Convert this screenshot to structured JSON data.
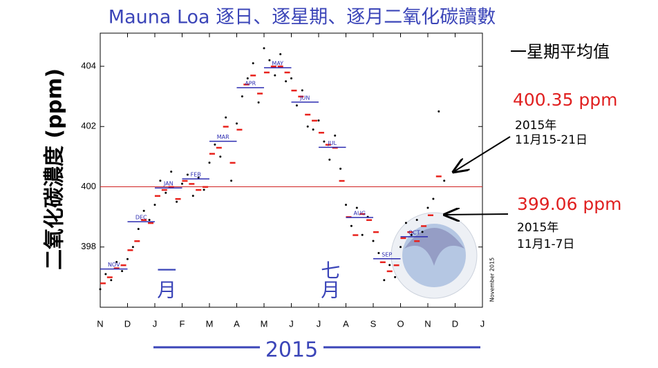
{
  "chart_data": {
    "type": "scatter",
    "title": "Mauna Loa 逐日、逐星期、逐月二氧化碳讀數",
    "y_label": "二氧化碳濃度 (ppm)",
    "x_label": "2015",
    "side_note": "November 2015",
    "legend_title": "一星期平均值",
    "xlim": [
      0,
      14
    ],
    "xticks": [
      {
        "value": 0,
        "label": "N"
      },
      {
        "value": 1,
        "label": "D"
      },
      {
        "value": 2,
        "label": "J"
      },
      {
        "value": 3,
        "label": "F"
      },
      {
        "value": 4,
        "label": "M"
      },
      {
        "value": 5,
        "label": "A"
      },
      {
        "value": 6,
        "label": "M"
      },
      {
        "value": 7,
        "label": "J"
      },
      {
        "value": 8,
        "label": "J"
      },
      {
        "value": 9,
        "label": "A"
      },
      {
        "value": 10,
        "label": "S"
      },
      {
        "value": 11,
        "label": "O"
      },
      {
        "value": 12,
        "label": "N"
      },
      {
        "value": 13,
        "label": "D"
      },
      {
        "value": 14,
        "label": "J"
      }
    ],
    "ylim": [
      396,
      405.1
    ],
    "yticks": [
      398,
      400,
      402,
      404
    ],
    "reference_line": 400,
    "month_markers": [
      {
        "x": 2.4,
        "label": "一月"
      },
      {
        "x": 8.4,
        "label": "七月"
      }
    ],
    "series": [
      {
        "name": "daily",
        "color": "#000000",
        "x": [
          0,
          0.2,
          0.4,
          0.6,
          0.8,
          1.0,
          1.2,
          1.4,
          1.6,
          1.8,
          2.0,
          2.2,
          2.4,
          2.6,
          2.8,
          3.0,
          3.2,
          3.4,
          3.6,
          3.8,
          4.0,
          4.2,
          4.4,
          4.6,
          4.8,
          5.0,
          5.2,
          5.4,
          5.6,
          5.8,
          6.0,
          6.2,
          6.4,
          6.6,
          6.8,
          7.0,
          7.2,
          7.4,
          7.6,
          7.8,
          8.0,
          8.2,
          8.4,
          8.6,
          8.8,
          9.0,
          9.2,
          9.4,
          9.6,
          9.8,
          10.0,
          10.2,
          10.4,
          10.6,
          10.8,
          11.0,
          11.2,
          11.4,
          11.6,
          11.8,
          12.0,
          12.2,
          12.4,
          12.6
        ],
        "values": [
          396.6,
          397.1,
          396.9,
          397.5,
          397.2,
          397.6,
          398.0,
          398.6,
          399.2,
          398.9,
          399.4,
          400.2,
          399.8,
          400.5,
          399.5,
          400.1,
          400.4,
          399.7,
          400.3,
          399.9,
          400.8,
          401.4,
          401.0,
          402.3,
          400.2,
          402.1,
          403.0,
          403.6,
          404.1,
          402.8,
          404.6,
          404.2,
          403.7,
          404.4,
          403.5,
          403.6,
          402.7,
          403.2,
          402.0,
          401.9,
          402.2,
          401.5,
          400.9,
          401.7,
          400.6,
          399.4,
          398.7,
          399.3,
          398.4,
          399.0,
          398.2,
          397.8,
          396.9,
          397.4,
          397.0,
          398.0,
          398.8,
          398.4,
          398.9,
          398.5,
          399.3,
          399.6,
          402.5,
          400.2
        ]
      },
      {
        "name": "weekly",
        "color": "#e8221c",
        "x": [
          0.1,
          0.35,
          0.6,
          0.85,
          1.1,
          1.35,
          1.6,
          1.85,
          2.1,
          2.35,
          2.6,
          2.85,
          3.1,
          3.35,
          3.6,
          3.85,
          4.1,
          4.35,
          4.6,
          4.85,
          5.1,
          5.35,
          5.6,
          5.85,
          6.1,
          6.35,
          6.6,
          6.85,
          7.1,
          7.35,
          7.6,
          7.85,
          8.1,
          8.35,
          8.6,
          8.85,
          9.1,
          9.35,
          9.6,
          9.85,
          10.1,
          10.35,
          10.6,
          10.85,
          11.1,
          11.35,
          11.6,
          11.85,
          12.1,
          12.4
        ],
        "values": [
          396.8,
          397.0,
          397.3,
          397.4,
          397.9,
          398.2,
          398.9,
          398.8,
          399.7,
          399.9,
          400.0,
          399.6,
          400.2,
          400.1,
          399.9,
          400.0,
          401.1,
          401.3,
          402.0,
          400.8,
          401.9,
          403.4,
          403.7,
          403.1,
          403.8,
          404.0,
          404.0,
          403.8,
          403.2,
          403.0,
          402.4,
          402.2,
          401.8,
          401.4,
          401.3,
          400.2,
          399.0,
          398.4,
          399.1,
          398.9,
          398.5,
          397.5,
          397.2,
          397.4,
          398.3,
          398.5,
          398.2,
          398.7,
          399.06,
          400.35
        ]
      },
      {
        "name": "monthly",
        "color": "#2a2ab0",
        "x": [
          0,
          1,
          2,
          3,
          4,
          5,
          6,
          7,
          8,
          9,
          10,
          11
        ],
        "labels": [
          "NOV",
          "DEC",
          "JAN",
          "FEB",
          "MAR",
          "APR",
          "MAY",
          "JUN",
          "JUL",
          "AUG",
          "SEP",
          "OCT"
        ],
        "values": [
          397.27,
          398.84,
          399.96,
          400.26,
          401.51,
          403.29,
          403.95,
          402.81,
          401.31,
          398.98,
          397.61,
          398.34
        ]
      }
    ],
    "annotations": [
      {
        "value": "400.35 ppm",
        "period_year": "2015年",
        "period_days": "11月15-21日"
      },
      {
        "value": "399.06 ppm",
        "period_year": "2015年",
        "period_days": "11月1-7日"
      }
    ]
  }
}
